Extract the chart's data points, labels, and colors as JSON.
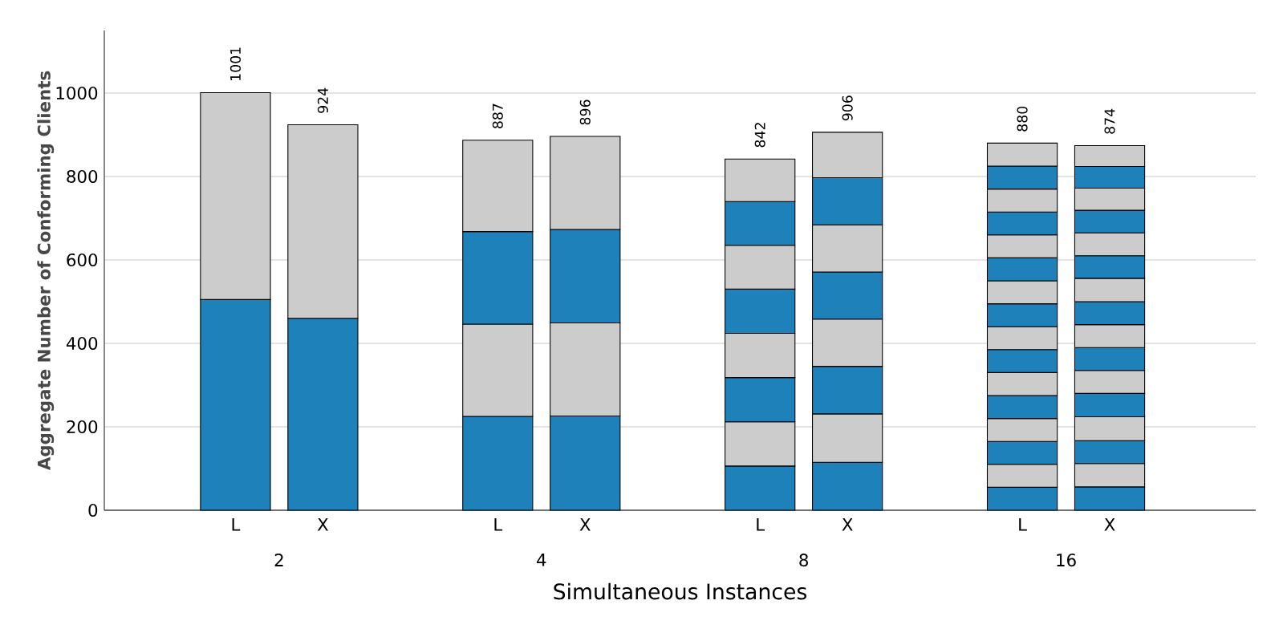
{
  "chart_data": {
    "type": "bar",
    "stacked": true,
    "xlabel": "Simultaneous Instances",
    "ylabel": "Aggregate Number of Conforming Clients",
    "categories": [
      "L",
      "X",
      "L",
      "X",
      "L",
      "X",
      "L",
      "X"
    ],
    "annotations": [
      "2",
      "4",
      "8",
      "16"
    ],
    "series": [
      {
        "color": "#1f81b9",
        "values": [
          505,
          460,
          225,
          226,
          106,
          115,
          55,
          56
        ]
      },
      {
        "color": "#cccccc",
        "values": [
          496,
          464,
          221,
          223,
          106,
          116,
          55,
          56
        ]
      },
      {
        "color": "#1f81b9",
        "values": [
          null,
          null,
          222,
          224,
          106,
          114,
          55,
          55
        ]
      },
      {
        "color": "#cccccc",
        "values": [
          null,
          null,
          219,
          223,
          106,
          113,
          55,
          57
        ]
      },
      {
        "color": "#1f81b9",
        "values": [
          null,
          null,
          null,
          null,
          106,
          113,
          55,
          56
        ]
      },
      {
        "color": "#cccccc",
        "values": [
          null,
          null,
          null,
          null,
          105,
          113,
          55,
          55
        ]
      },
      {
        "color": "#1f81b9",
        "values": [
          null,
          null,
          null,
          null,
          105,
          113,
          55,
          55
        ]
      },
      {
        "color": "#cccccc",
        "values": [
          null,
          null,
          null,
          null,
          102,
          109,
          55,
          55
        ]
      },
      {
        "color": "#1f81b9",
        "values": [
          null,
          null,
          null,
          null,
          null,
          null,
          55,
          55
        ]
      },
      {
        "color": "#cccccc",
        "values": [
          null,
          null,
          null,
          null,
          null,
          null,
          55,
          56
        ]
      },
      {
        "color": "#1f81b9",
        "values": [
          null,
          null,
          null,
          null,
          null,
          null,
          55,
          54
        ]
      },
      {
        "color": "#cccccc",
        "values": [
          null,
          null,
          null,
          null,
          null,
          null,
          55,
          55
        ]
      },
      {
        "color": "#1f81b9",
        "values": [
          null,
          null,
          null,
          null,
          null,
          null,
          55,
          54
        ]
      },
      {
        "color": "#cccccc",
        "values": [
          null,
          null,
          null,
          null,
          null,
          null,
          55,
          53
        ]
      },
      {
        "color": "#1f81b9",
        "values": [
          null,
          null,
          null,
          null,
          null,
          null,
          55,
          52
        ]
      },
      {
        "color": "#cccccc",
        "values": [
          null,
          null,
          null,
          null,
          null,
          null,
          55,
          50
        ]
      }
    ],
    "totals": [
      "1001",
      "924",
      "887",
      "896",
      "842",
      "906",
      "880",
      "874"
    ],
    "ylim": [
      0,
      1150
    ],
    "yticks": [
      0,
      200,
      400,
      600,
      800,
      1000
    ],
    "grid": "y"
  }
}
